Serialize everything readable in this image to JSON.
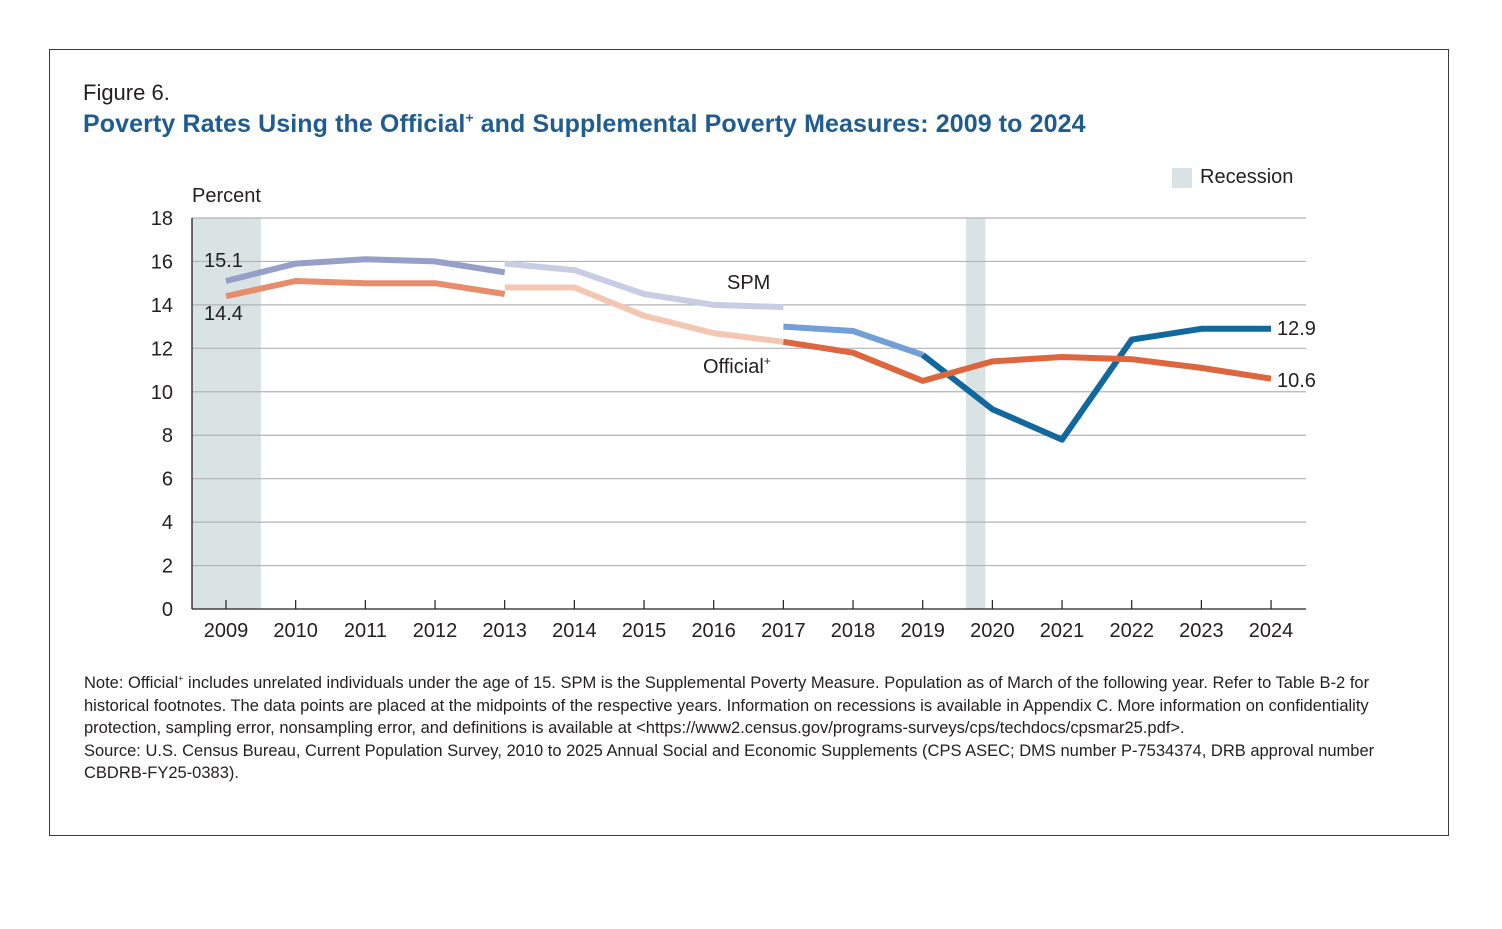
{
  "figure": {
    "label": "Figure 6.",
    "title_part1": "Poverty Rates Using the Official",
    "title_sup": "+",
    "title_part2": " and Supplemental Poverty Measures: 2009 to 2024"
  },
  "legend": {
    "recession_label": "Recession",
    "recession_color": "#d9e3e4"
  },
  "notes": {
    "note_part1": "Note: Official",
    "note_sup": "+",
    "note_part2": " includes unrelated individuals under the age of 15. SPM is the Supplemental Poverty Measure. Population as of March of the following year. Refer to Table B-2 for historical footnotes. The data points are placed at the midpoints of the respective years. Information on recessions is available in Appendix C. More information on confidentiality protection, sampling error, nonsampling error, and definitions is available at <https://www2.census.gov/programs-surveys/cps/techdocs/cpsmar25.pdf>.",
    "source": "Source: U.S. Census Bureau, Current Population Survey, 2010 to 2025 Annual Social and Economic Supplements (CPS ASEC; DMS number P-7534374, DRB approval number CBDRB-FY25-0383)."
  },
  "chart_data": {
    "type": "line",
    "title": "Poverty Rates Using the Official+ and Supplemental Poverty Measures: 2009 to 2024",
    "xlabel": "",
    "ylabel": "Percent",
    "ylim": [
      0,
      18
    ],
    "yticks": [
      0,
      2,
      4,
      6,
      8,
      10,
      12,
      14,
      16,
      18
    ],
    "xticks": [
      "2009",
      "2010",
      "2011",
      "2012",
      "2013",
      "2014",
      "2015",
      "2016",
      "2017",
      "2018",
      "2019",
      "2020",
      "2021",
      "2022",
      "2023",
      "2024"
    ],
    "grid": true,
    "legend_position": "top-right",
    "recessions": [
      {
        "start": 2008.5,
        "end": 2009.5
      },
      {
        "start": 2019.62,
        "end": 2019.9
      }
    ],
    "series": [
      {
        "name": "SPM",
        "segment": 1,
        "color": "#959fc8",
        "x": [
          2009,
          2010,
          2011,
          2012,
          2013
        ],
        "values": [
          15.1,
          15.9,
          16.1,
          16.0,
          15.5
        ]
      },
      {
        "name": "SPM",
        "segment": 2,
        "color": "#c9cde4",
        "x": [
          2013,
          2014,
          2015,
          2016,
          2017
        ],
        "values": [
          15.9,
          15.6,
          14.5,
          14.0,
          13.9
        ]
      },
      {
        "name": "SPM",
        "segment": 3,
        "color": "#729fd5",
        "x": [
          2017,
          2018,
          2019
        ],
        "values": [
          13.0,
          12.8,
          11.7
        ]
      },
      {
        "name": "SPM",
        "segment": 4,
        "color": "#11689d",
        "x": [
          2019,
          2020,
          2021,
          2022,
          2023,
          2024
        ],
        "values": [
          11.7,
          9.2,
          7.8,
          12.4,
          12.9,
          12.9
        ]
      },
      {
        "name": "Official+",
        "segment": 1,
        "color": "#e78d6c",
        "x": [
          2009,
          2010,
          2011,
          2012,
          2013
        ],
        "values": [
          14.4,
          15.1,
          15.0,
          15.0,
          14.5
        ]
      },
      {
        "name": "Official+",
        "segment": 2,
        "color": "#f4c7b2",
        "x": [
          2013,
          2014,
          2015,
          2016,
          2017
        ],
        "values": [
          14.8,
          14.8,
          13.5,
          12.7,
          12.3
        ]
      },
      {
        "name": "Official+",
        "segment": 3,
        "color": "#dd663f",
        "x": [
          2017,
          2018,
          2019,
          2020,
          2021,
          2022,
          2023,
          2024
        ],
        "values": [
          12.3,
          11.8,
          10.5,
          11.4,
          11.6,
          11.5,
          11.1,
          10.6
        ]
      }
    ],
    "annotations": [
      {
        "text": "15.1",
        "series": "SPM",
        "x": 2009,
        "value": 15.1
      },
      {
        "text": "14.4",
        "series": "Official+",
        "x": 2009,
        "value": 14.4
      },
      {
        "text": "12.9",
        "series": "SPM",
        "x": 2024,
        "value": 12.9
      },
      {
        "text": "10.6",
        "series": "Official+",
        "x": 2024,
        "value": 10.6
      },
      {
        "text": "SPM",
        "series": "SPM",
        "x": 2016.5
      },
      {
        "text": "Official+",
        "series": "Official+",
        "x": 2016.5
      }
    ]
  },
  "labels": {
    "spm": "SPM",
    "official": "Official",
    "official_sup": "+",
    "spm_start": "15.1",
    "official_start": "14.4",
    "spm_end": "12.9",
    "official_end": "10.6"
  }
}
